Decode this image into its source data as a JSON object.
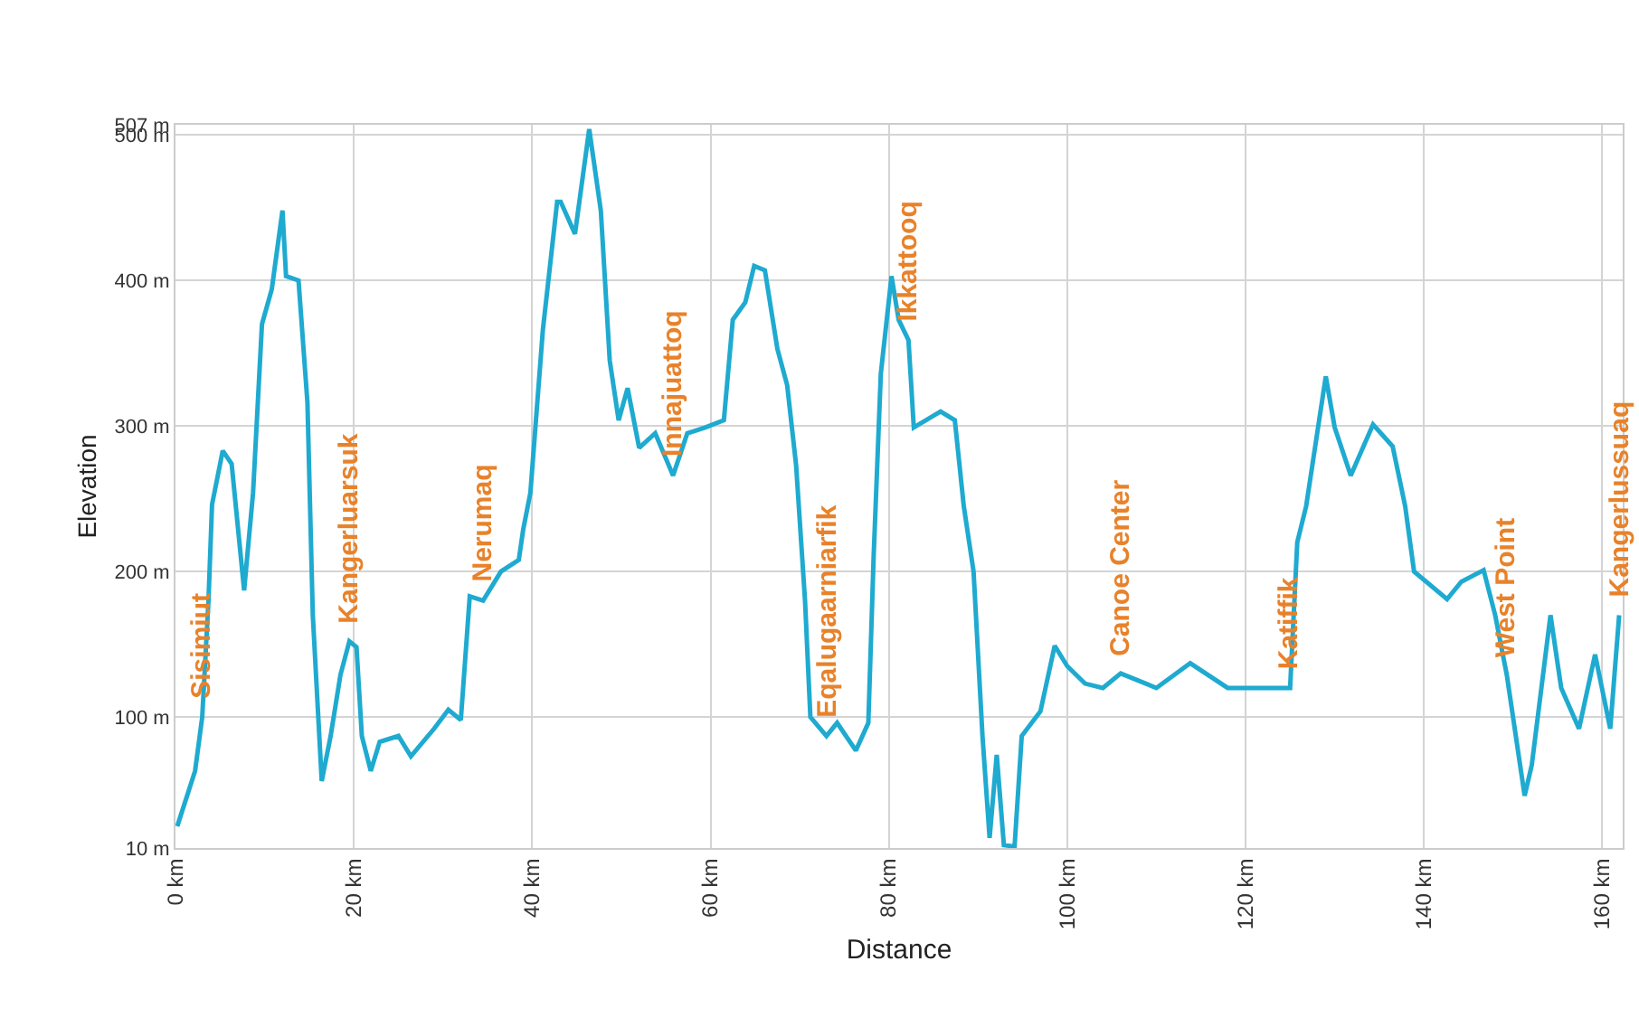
{
  "chart_data": {
    "type": "line",
    "xlabel": "Distance",
    "ylabel": "Elevation",
    "x": [
      0.2,
      2.2,
      3,
      3.7,
      4.1,
      5.3,
      6.3,
      7.7,
      8.7,
      9.7,
      10.8,
      12,
      12.4,
      13.8,
      14.8,
      15.4,
      16.4,
      17.4,
      18.5,
      19.5,
      20.3,
      20.9,
      21.9,
      22.9,
      25,
      26.4,
      29,
      30.6,
      32,
      33,
      34.5,
      36.5,
      38.5,
      39,
      39.8,
      41.2,
      42.8,
      43.2,
      44.8,
      46.4,
      47.7,
      48.7,
      49.7,
      50.7,
      52,
      53.8,
      55.8,
      57.4,
      59.4,
      61.5,
      62.5,
      63.9,
      64.9,
      66.1,
      67.5,
      68.6,
      69.6,
      70.6,
      71.2,
      73,
      74.2,
      76.3,
      77.7,
      78.3,
      79.1,
      80.3,
      81.1,
      82.2,
      82.8,
      85.8,
      87.4,
      88.4,
      89.5,
      90.5,
      91.3,
      92.1,
      92.9,
      94.1,
      94.9,
      97,
      98.6,
      100,
      102,
      104,
      106,
      110,
      113.8,
      118,
      125,
      125.8,
      126.8,
      129,
      130,
      131.8,
      134.3,
      136.5,
      137.9,
      138.9,
      142.6,
      144.2,
      146.7,
      148,
      149.3,
      151.3,
      152.1,
      154.2,
      155.4,
      157.4,
      159.2,
      160.9,
      161.9
    ],
    "series": [
      {
        "color": "#1faad0",
        "values": [
          25,
          63,
          100,
          180,
          246,
          283,
          274,
          187,
          254,
          370,
          394,
          448,
          403,
          400,
          316,
          170,
          56,
          87,
          129,
          152,
          148,
          87,
          63,
          83,
          87,
          73,
          92,
          105,
          98,
          183,
          180,
          200,
          208,
          229,
          254,
          366,
          454,
          454,
          432,
          504,
          448,
          345,
          304,
          326,
          285,
          295,
          266,
          295,
          299,
          304,
          373,
          385,
          410,
          407,
          353,
          328,
          273,
          180,
          100,
          87,
          96,
          77,
          96,
          211,
          336,
          403,
          373,
          359,
          299,
          310,
          304,
          245,
          200,
          87,
          17,
          74,
          12,
          11,
          87,
          104,
          149,
          135,
          123,
          120,
          130,
          120,
          137,
          120,
          120,
          220,
          245,
          334,
          299,
          266,
          301,
          286,
          245,
          200,
          181,
          193,
          201,
          170,
          129,
          46,
          67,
          170,
          120,
          92,
          143,
          92,
          170
        ]
      }
    ],
    "xlim": [
      0,
      162.3
    ],
    "ylim": [
      10,
      507
    ],
    "xticks": [
      {
        "value": 0,
        "label": "0 km"
      },
      {
        "value": 20,
        "label": "20 km"
      },
      {
        "value": 40,
        "label": "40 km"
      },
      {
        "value": 60,
        "label": "60 km"
      },
      {
        "value": 80,
        "label": "80 km"
      },
      {
        "value": 100,
        "label": "100 km"
      },
      {
        "value": 120,
        "label": "120 km"
      },
      {
        "value": 140,
        "label": "140 km"
      },
      {
        "value": 160,
        "label": "160 km"
      }
    ],
    "yticks": [
      {
        "value": 10,
        "label": "10 m"
      },
      {
        "value": 100,
        "label": "100 m"
      },
      {
        "value": 200,
        "label": "200 m"
      },
      {
        "value": 300,
        "label": "300 m"
      },
      {
        "value": 400,
        "label": "400 m"
      },
      {
        "value": 500,
        "label": "500 m"
      },
      {
        "value": 507,
        "label": "507 m"
      }
    ],
    "grid": true,
    "legend": false,
    "marker": "none",
    "line_style": "solid",
    "annotations": [
      {
        "text": "Sisimiut",
        "x": 3,
        "y": 100
      },
      {
        "text": "Kangerluarsuk",
        "x": 19.5,
        "y": 152
      },
      {
        "text": "Nerumaq",
        "x": 34.5,
        "y": 180
      },
      {
        "text": "Innajuattoq",
        "x": 55.8,
        "y": 266
      },
      {
        "text": "Eqalugaarniarfik",
        "x": 73,
        "y": 87
      },
      {
        "text": "Ikkattooq",
        "x": 82.2,
        "y": 359
      },
      {
        "text": "Canoe Center",
        "x": 106,
        "y": 130
      },
      {
        "text": "Katiffik",
        "x": 125,
        "y": 120
      },
      {
        "text": "West Point",
        "x": 149.3,
        "y": 129
      },
      {
        "text": "Kangerlussuaq",
        "x": 161.9,
        "y": 170
      }
    ]
  }
}
